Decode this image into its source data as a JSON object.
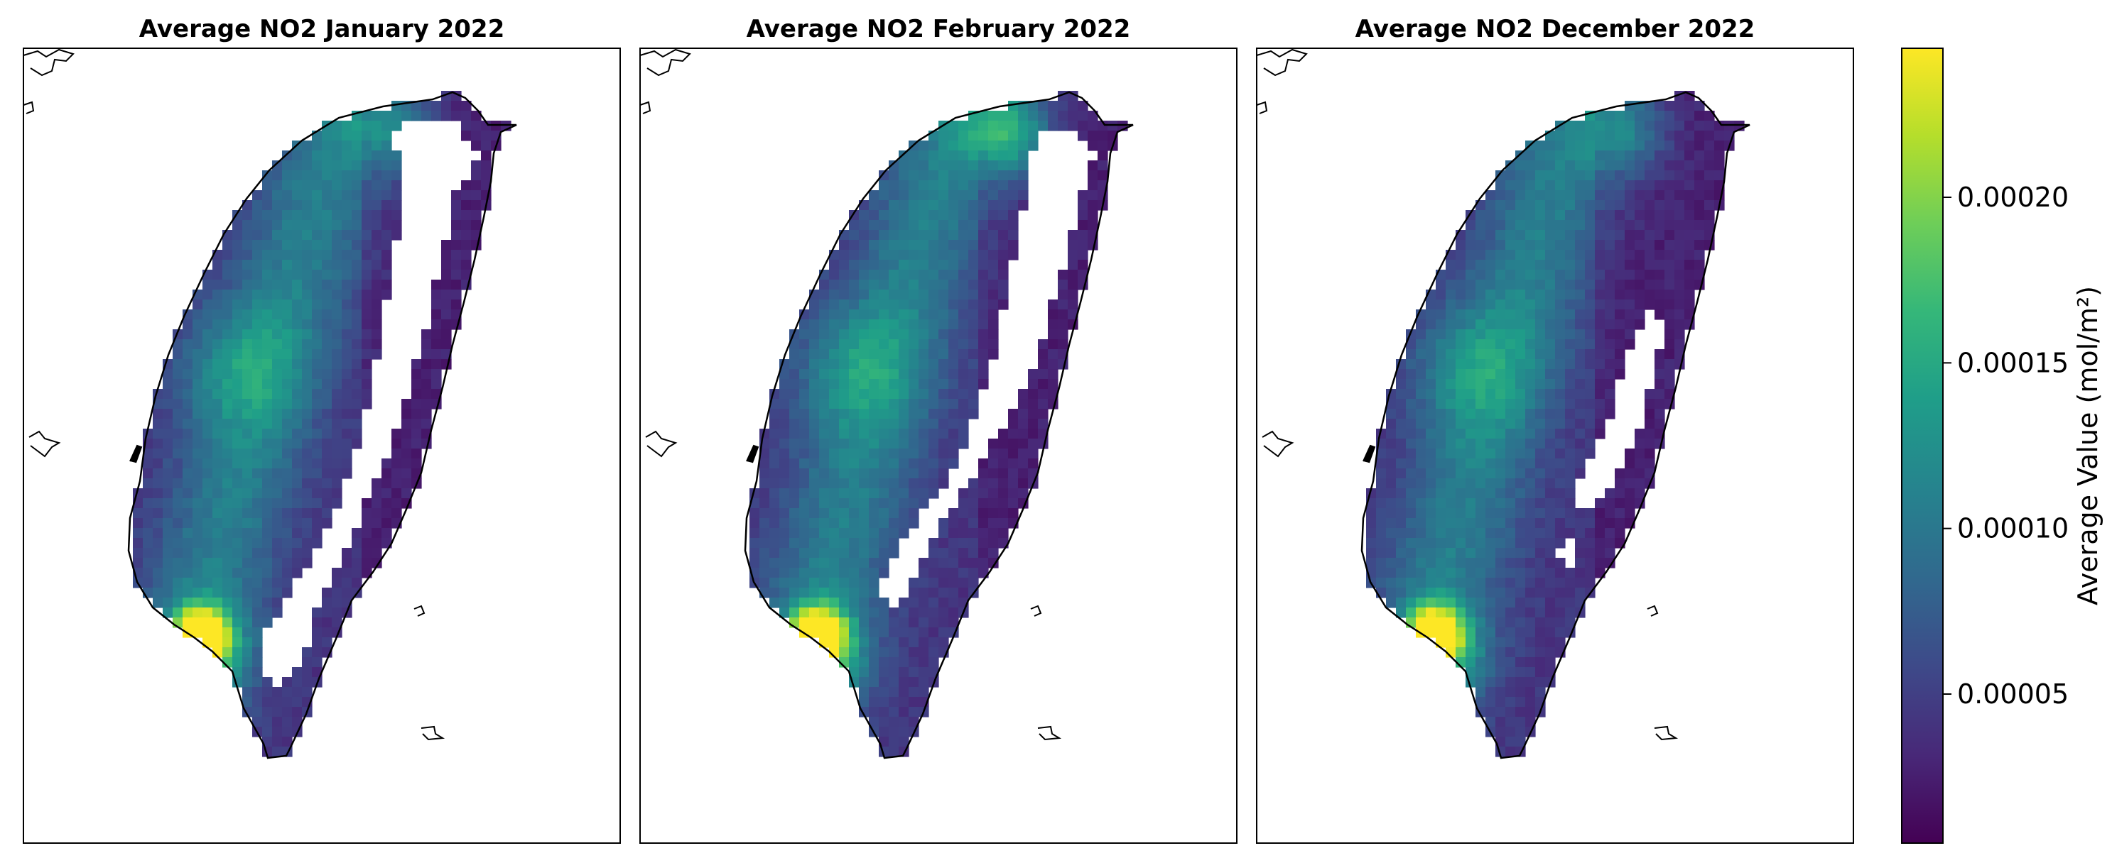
{
  "figure": {
    "panels": [
      {
        "title": "Average NO2 January 2022",
        "month": "January",
        "year": 2022
      },
      {
        "title": "Average NO2 February 2022",
        "month": "February",
        "year": 2022
      },
      {
        "title": "Average NO2 December 2022",
        "month": "December",
        "year": 2022
      }
    ],
    "colorbar": {
      "label": "Average Value (mol/m²)",
      "ticks": [
        "0.00005",
        "0.00010",
        "0.00015",
        "0.00020"
      ],
      "tick_values": [
        5e-05,
        0.0001,
        0.00015,
        0.0002
      ],
      "range": [
        5e-06,
        0.000245
      ],
      "colormap": "viridis",
      "colors": [
        "#440154",
        "#482878",
        "#3e4989",
        "#31688e",
        "#26828e",
        "#1f9e89",
        "#35b779",
        "#6ece58",
        "#b5de2b",
        "#fde725"
      ]
    },
    "no_data_color": "#ffffff",
    "coastline_color": "#000000"
  }
}
